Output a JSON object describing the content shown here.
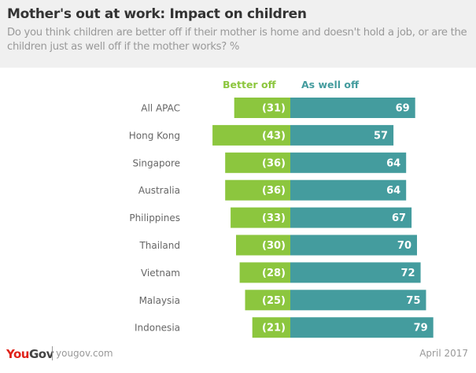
{
  "header": {
    "title": "Mother's out at work: Impact on children",
    "subtitle": "Do you think children are better off if their mother is home and doesn't hold a job, or are the children just as well off if the mother works?  %"
  },
  "chart_data": {
    "type": "bar",
    "orientation": "horizontal-diverging",
    "categories": [
      "All APAC",
      "Hong Kong",
      "Singapore",
      "Australia",
      "Philippines",
      "Thailand",
      "Vietnam",
      "Malaysia",
      "Indonesia"
    ],
    "series": [
      {
        "name": "Better off",
        "color": "#8cc63e",
        "values": [
          31,
          43,
          36,
          36,
          33,
          30,
          28,
          25,
          21
        ],
        "labels": [
          "(31)",
          "(43)",
          "(36)",
          "(36)",
          "(33)",
          "(30)",
          "(28)",
          "(25)",
          "(21)"
        ]
      },
      {
        "name": "As well off",
        "color": "#449c9e",
        "values": [
          69,
          57,
          64,
          64,
          67,
          70,
          72,
          75,
          79
        ],
        "labels": [
          "69",
          "57",
          "64",
          "64",
          "67",
          "70",
          "72",
          "75",
          "79"
        ]
      }
    ],
    "grid": false,
    "legend": "top"
  },
  "footer": {
    "logo": {
      "you": "You",
      "gov": "Gov"
    },
    "site": "yougov.com",
    "date": "April 2017"
  }
}
